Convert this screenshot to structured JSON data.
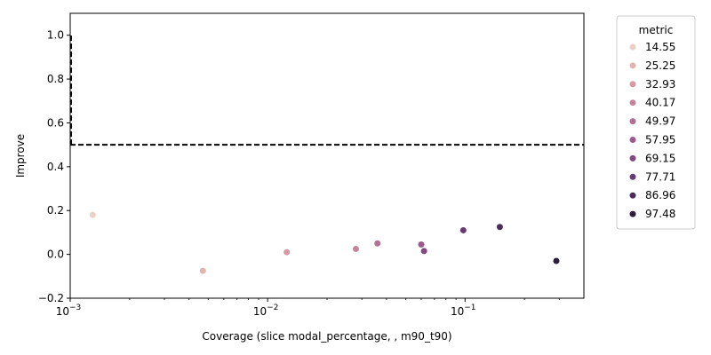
{
  "chart_data": {
    "type": "scatter",
    "xlabel": "Coverage (slice modal_percentage, , m90_t90)",
    "ylabel": "Improve",
    "xscale": "log",
    "xlim": [
      0.001,
      0.4
    ],
    "ylim": [
      -0.2,
      1.1
    ],
    "x_ticks": [
      {
        "value": 0.001,
        "base": "10",
        "exp": "−3"
      },
      {
        "value": 0.01,
        "base": "10",
        "exp": "−2"
      },
      {
        "value": 0.1,
        "base": "10",
        "exp": "−1"
      }
    ],
    "y_ticks": [
      "−0.2",
      "0.0",
      "0.2",
      "0.4",
      "0.6",
      "0.8",
      "1.0"
    ],
    "y_tick_values": [
      -0.2,
      0.0,
      0.2,
      0.4,
      0.6,
      0.8,
      1.0
    ],
    "reference_lines": [
      {
        "orientation": "horizontal",
        "y": 0.5,
        "style": "dashed",
        "color": "#000000"
      },
      {
        "orientation": "vertical",
        "x": 0.001,
        "y_range": [
          0.5,
          1.0
        ],
        "style": "dashed",
        "color": "#000000"
      }
    ],
    "legend": {
      "title": "metric",
      "position": "outside-right",
      "entries": [
        {
          "label": "14.55",
          "color": "#eccfc6"
        },
        {
          "label": "25.25",
          "color": "#e2b4b0"
        },
        {
          "label": "32.93",
          "color": "#d59aa3"
        },
        {
          "label": "40.17",
          "color": "#c6849c"
        },
        {
          "label": "49.97",
          "color": "#b36f96"
        },
        {
          "label": "57.95",
          "color": "#9e5a8f"
        },
        {
          "label": "69.15",
          "color": "#834784"
        },
        {
          "label": "77.71",
          "color": "#693975"
        },
        {
          "label": "86.96",
          "color": "#4d2b5c"
        },
        {
          "label": "97.48",
          "color": "#2d1e3e"
        }
      ]
    },
    "points": [
      {
        "x": 0.0013,
        "y": 0.18,
        "color": "#eccfc6"
      },
      {
        "x": 0.0047,
        "y": -0.075,
        "color": "#e2b4b0"
      },
      {
        "x": 0.0125,
        "y": 0.01,
        "color": "#d59aa3"
      },
      {
        "x": 0.028,
        "y": 0.025,
        "color": "#c6849c"
      },
      {
        "x": 0.036,
        "y": 0.05,
        "color": "#b36f96"
      },
      {
        "x": 0.06,
        "y": 0.045,
        "color": "#9e5a8f"
      },
      {
        "x": 0.062,
        "y": 0.015,
        "color": "#834784"
      },
      {
        "x": 0.098,
        "y": 0.11,
        "color": "#693975"
      },
      {
        "x": 0.15,
        "y": 0.125,
        "color": "#4d2b5c"
      },
      {
        "x": 0.29,
        "y": -0.03,
        "color": "#2d1e3e"
      }
    ]
  }
}
